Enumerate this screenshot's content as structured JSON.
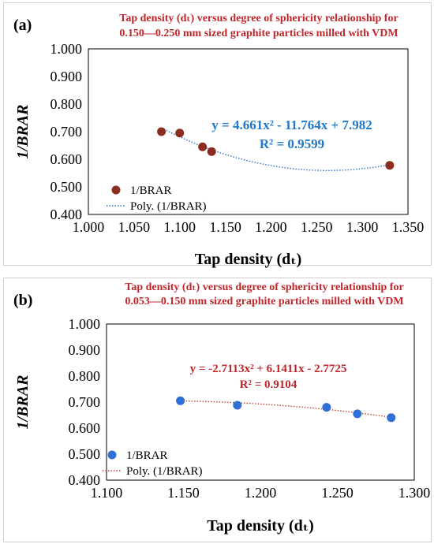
{
  "figure": {
    "panel_a_label": "(a)",
    "panel_b_label": "(b)"
  },
  "chart_data": [
    {
      "type": "scatter",
      "title_line1": "Tap density (dₜ) versus degree of sphericity relationship for",
      "title_line2": "0.150—0.250 mm sized graphite particles milled with VDM",
      "xlabel": "Tap density (dₜ)",
      "ylabel": "1/BRAR",
      "xlim": [
        1.0,
        1.35
      ],
      "ylim": [
        0.4,
        1.0
      ],
      "x_ticks": [
        "1.000",
        "1.050",
        "1.100",
        "1.150",
        "1.200",
        "1.250",
        "1.300",
        "1.350"
      ],
      "y_ticks": [
        "0.400",
        "0.500",
        "0.600",
        "0.700",
        "0.800",
        "0.900",
        "1.000"
      ],
      "grid": false,
      "series": [
        {
          "name": "1/BRAR",
          "x": [
            1.08,
            1.1,
            1.125,
            1.135,
            1.33
          ],
          "y": [
            0.7,
            0.695,
            0.645,
            0.628,
            0.578
          ],
          "marker_color": "#8b2e1f"
        }
      ],
      "trendline": {
        "name": "Poly. (1/BRAR)",
        "coefficients": [
          4.661,
          -11.764,
          7.982
        ],
        "x_range": [
          1.08,
          1.33
        ],
        "color": "#2e75c9"
      },
      "equation": "y = 4.661x² - 11.764x + 7.982",
      "r_squared": "R² = 0.9599",
      "legend_position": "bottom-left"
    },
    {
      "type": "scatter",
      "title_line1": "Tap density (dₜ) versus degree of sphericity relationship for",
      "title_line2": "0.053—0.150 mm sized graphite particles milled with VDM",
      "xlabel": "Tap density (dₜ)",
      "ylabel": "1/BRAR",
      "xlim": [
        1.1,
        1.3
      ],
      "ylim": [
        0.4,
        1.0
      ],
      "x_ticks": [
        "1.100",
        "1.150",
        "1.200",
        "1.250",
        "1.300"
      ],
      "y_ticks": [
        "0.400",
        "0.500",
        "0.600",
        "0.700",
        "0.800",
        "0.900",
        "1.000"
      ],
      "grid": false,
      "series": [
        {
          "name": "1/BRAR",
          "x": [
            1.148,
            1.185,
            1.243,
            1.263,
            1.285
          ],
          "y": [
            0.705,
            0.688,
            0.68,
            0.655,
            0.64
          ],
          "marker_color": "#2f6fd6"
        }
      ],
      "trendline": {
        "name": "Poly. (1/BRAR)",
        "coefficients": [
          -2.7113,
          6.1411,
          -2.7725
        ],
        "x_range": [
          1.148,
          1.285
        ],
        "color": "#b8433a"
      },
      "equation": "y = -2.7113x² + 6.1411x - 2.7725",
      "r_squared": "R² = 0.9104",
      "legend_position": "bottom-left"
    }
  ]
}
